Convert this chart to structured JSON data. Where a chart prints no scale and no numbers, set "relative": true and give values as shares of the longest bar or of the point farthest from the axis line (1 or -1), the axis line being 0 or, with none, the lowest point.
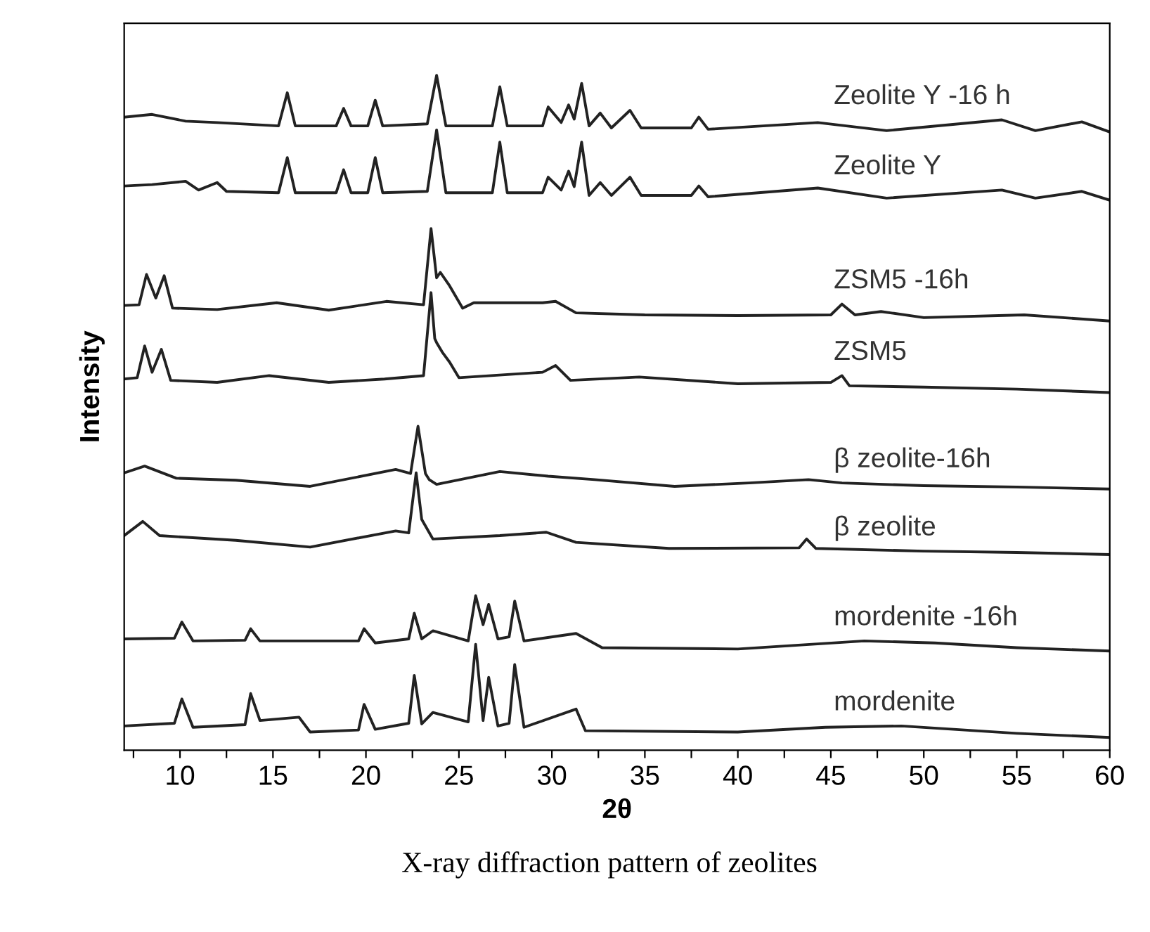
{
  "chart_data": {
    "type": "line",
    "relative": true,
    "xlabel": "2θ",
    "ylabel": "Intensity",
    "annotations": [
      "X-ray diffraction pattern of zeolites"
    ],
    "xlim": [
      7,
      60
    ],
    "xticks": [
      {
        "value": 7.5,
        "label": null
      },
      10,
      {
        "value": 12.5,
        "label": null
      },
      15,
      {
        "value": 17.5,
        "label": null
      },
      20,
      {
        "value": 22.5,
        "label": null
      },
      25,
      {
        "value": 27.5,
        "label": null
      },
      30,
      {
        "value": 32.5,
        "label": null
      },
      35,
      {
        "value": 37.5,
        "label": null
      },
      40,
      {
        "value": 42.5,
        "label": null
      },
      45,
      {
        "value": 47.5,
        "label": null
      },
      50,
      {
        "value": 52.5,
        "label": null
      },
      55,
      {
        "value": 57.5,
        "label": null
      },
      60
    ],
    "tick_labels": "x",
    "series": [
      {
        "name": "Zeolite Y -16 h",
        "color": "#222222",
        "x": [
          7,
          8.5,
          10.3,
          12,
          15.3,
          15.77,
          16.2,
          18.4,
          18.8,
          19.2,
          20.1,
          20.5,
          20.9,
          23.3,
          23.8,
          24.3,
          26.8,
          27.2,
          27.6,
          29.5,
          29.8,
          30.5,
          30.9,
          31.2,
          31.6,
          32.0,
          32.6,
          33.2,
          34.2,
          34.8,
          37.5,
          37.9,
          38.4,
          44.3,
          48,
          54.2,
          56,
          58.5,
          60
        ],
        "values": [
          0.938,
          0.942,
          0.932,
          0.93,
          0.925,
          0.974,
          0.925,
          0.925,
          0.951,
          0.925,
          0.925,
          0.963,
          0.925,
          0.928,
          1.0,
          0.925,
          0.925,
          0.983,
          0.925,
          0.925,
          0.953,
          0.93,
          0.956,
          0.935,
          0.988,
          0.925,
          0.944,
          0.922,
          0.948,
          0.922,
          0.922,
          0.938,
          0.92,
          0.93,
          0.918,
          0.934,
          0.918,
          0.931,
          0.916
        ]
      },
      {
        "name": "Zeolite Y",
        "color": "#222222",
        "x": [
          7,
          8.5,
          10.3,
          11,
          12,
          12.5,
          15.3,
          15.77,
          16.2,
          18.4,
          18.8,
          19.2,
          20.1,
          20.5,
          20.9,
          23.3,
          23.8,
          24.3,
          26.8,
          27.2,
          27.6,
          29.5,
          29.8,
          30.5,
          30.9,
          31.2,
          31.6,
          32.0,
          32.6,
          33.2,
          34.2,
          34.8,
          37.5,
          37.9,
          38.4,
          44.3,
          48,
          54.2,
          56,
          58.5,
          60
        ],
        "values": [
          0.836,
          0.838,
          0.843,
          0.83,
          0.841,
          0.828,
          0.826,
          0.878,
          0.826,
          0.826,
          0.86,
          0.826,
          0.826,
          0.878,
          0.826,
          0.828,
          0.919,
          0.826,
          0.826,
          0.901,
          0.826,
          0.826,
          0.849,
          0.83,
          0.858,
          0.835,
          0.901,
          0.822,
          0.841,
          0.822,
          0.849,
          0.822,
          0.822,
          0.836,
          0.82,
          0.833,
          0.818,
          0.83,
          0.818,
          0.828,
          0.815
        ]
      },
      {
        "name": "ZSM5 -16h",
        "color": "#222222",
        "x": [
          7,
          7.8,
          8.2,
          8.7,
          9.15,
          9.6,
          12,
          15.2,
          18,
          21.1,
          23.1,
          23.5,
          23.8,
          24.0,
          24.5,
          25.2,
          25.8,
          27.1,
          29.5,
          30.2,
          31.3,
          35,
          40,
          45.0,
          45.6,
          46.3,
          47.7,
          50,
          55.4,
          60
        ],
        "values": [
          0.659,
          0.66,
          0.705,
          0.67,
          0.703,
          0.655,
          0.653,
          0.663,
          0.652,
          0.665,
          0.66,
          0.773,
          0.7,
          0.708,
          0.688,
          0.655,
          0.663,
          0.663,
          0.663,
          0.665,
          0.648,
          0.645,
          0.644,
          0.645,
          0.661,
          0.645,
          0.65,
          0.641,
          0.645,
          0.636
        ]
      },
      {
        "name": "ZSM5",
        "color": "#222222",
        "x": [
          7,
          7.7,
          8.1,
          8.5,
          9.0,
          9.5,
          12,
          14.8,
          18,
          21,
          23.1,
          23.5,
          23.7,
          23.8,
          24.1,
          24.5,
          25,
          29.5,
          30.2,
          31,
          34.7,
          40,
          45.0,
          45.6,
          46.0,
          50,
          55,
          60
        ],
        "values": [
          0.55,
          0.552,
          0.599,
          0.56,
          0.594,
          0.548,
          0.545,
          0.555,
          0.545,
          0.55,
          0.555,
          0.678,
          0.61,
          0.604,
          0.59,
          0.575,
          0.552,
          0.56,
          0.57,
          0.548,
          0.553,
          0.543,
          0.545,
          0.555,
          0.54,
          0.538,
          0.535,
          0.53
        ]
      },
      {
        "name": "β zeolite-16h",
        "color": "#222222",
        "x": [
          7,
          8.1,
          9.8,
          13,
          17.0,
          21.6,
          22.4,
          22.8,
          23.2,
          23.4,
          23.8,
          27.2,
          29.8,
          32.3,
          36.6,
          40.6,
          43.8,
          45.6,
          50,
          55,
          60
        ],
        "values": [
          0.411,
          0.421,
          0.403,
          0.4,
          0.391,
          0.416,
          0.41,
          0.48,
          0.41,
          0.401,
          0.394,
          0.413,
          0.406,
          0.401,
          0.391,
          0.396,
          0.401,
          0.396,
          0.392,
          0.39,
          0.387
        ]
      },
      {
        "name": "β zeolite",
        "color": "#222222",
        "x": [
          7,
          8.0,
          8.9,
          13.0,
          17.0,
          21.6,
          22.3,
          22.7,
          23.0,
          23.6,
          27.2,
          29.7,
          31.3,
          36.3,
          43.3,
          43.7,
          44.2,
          50,
          55,
          60
        ],
        "values": [
          0.318,
          0.339,
          0.318,
          0.311,
          0.301,
          0.325,
          0.322,
          0.411,
          0.342,
          0.313,
          0.318,
          0.323,
          0.308,
          0.299,
          0.3,
          0.313,
          0.299,
          0.295,
          0.293,
          0.29
        ]
      },
      {
        "name": "mordenite -16h",
        "color": "#222222",
        "x": [
          7,
          9.7,
          10.1,
          10.7,
          13.5,
          13.8,
          14.3,
          16.2,
          19.6,
          19.9,
          20.5,
          22.3,
          22.6,
          23.0,
          23.6,
          25.5,
          25.9,
          26.3,
          26.6,
          27.1,
          27.7,
          28.0,
          28.5,
          31.3,
          32.7,
          40,
          46.8,
          50.6,
          55,
          60
        ],
        "values": [
          0.165,
          0.166,
          0.19,
          0.162,
          0.163,
          0.18,
          0.162,
          0.162,
          0.162,
          0.18,
          0.159,
          0.165,
          0.203,
          0.165,
          0.177,
          0.162,
          0.229,
          0.186,
          0.216,
          0.165,
          0.168,
          0.221,
          0.162,
          0.173,
          0.152,
          0.15,
          0.162,
          0.159,
          0.152,
          0.147
        ]
      },
      {
        "name": "mordenite",
        "color": "#222222",
        "x": [
          7,
          9.7,
          10.1,
          10.7,
          13.5,
          13.8,
          14.3,
          16.4,
          17.0,
          19.6,
          19.9,
          20.5,
          22.3,
          22.6,
          23.0,
          23.6,
          25.5,
          25.9,
          26.3,
          26.6,
          27.1,
          27.7,
          28.0,
          28.5,
          31.3,
          31.8,
          40,
          44.7,
          48.8,
          55,
          60
        ],
        "values": [
          0.036,
          0.04,
          0.076,
          0.034,
          0.038,
          0.084,
          0.044,
          0.049,
          0.027,
          0.03,
          0.068,
          0.031,
          0.04,
          0.111,
          0.039,
          0.056,
          0.042,
          0.157,
          0.044,
          0.108,
          0.036,
          0.04,
          0.127,
          0.034,
          0.061,
          0.029,
          0.027,
          0.034,
          0.036,
          0.025,
          0.019
        ]
      }
    ]
  }
}
